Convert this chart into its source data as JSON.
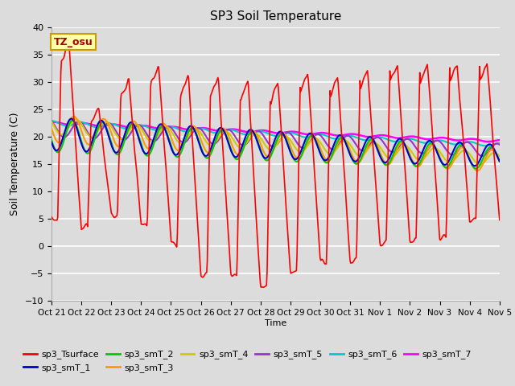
{
  "title": "SP3 Soil Temperature",
  "ylabel": "Soil Temperature (C)",
  "xlabel": "Time",
  "tz_label": "TZ_osu",
  "ylim": [
    -10,
    40
  ],
  "yticks": [
    -10,
    -5,
    0,
    5,
    10,
    15,
    20,
    25,
    30,
    35,
    40
  ],
  "x_tick_labels": [
    "Oct 21",
    "Oct 22",
    "Oct 23",
    "Oct 24",
    "Oct 25",
    "Oct 26",
    "Oct 27",
    "Oct 28",
    "Oct 29",
    "Oct 30",
    "Oct 31",
    "Nov 1",
    "Nov 2",
    "Nov 3",
    "Nov 4",
    "Nov 5"
  ],
  "bg_color": "#dcdcdc",
  "plot_bg_color": "#dcdcdc",
  "grid_color": "#ffffff",
  "series_colors": {
    "sp3_Tsurface": "#ff0000",
    "sp3_smT_1": "#0000cc",
    "sp3_smT_2": "#00cc00",
    "sp3_smT_3": "#ff9900",
    "sp3_smT_4": "#cccc00",
    "sp3_smT_5": "#9933cc",
    "sp3_smT_6": "#00cccc",
    "sp3_smT_7": "#ff00ff"
  }
}
